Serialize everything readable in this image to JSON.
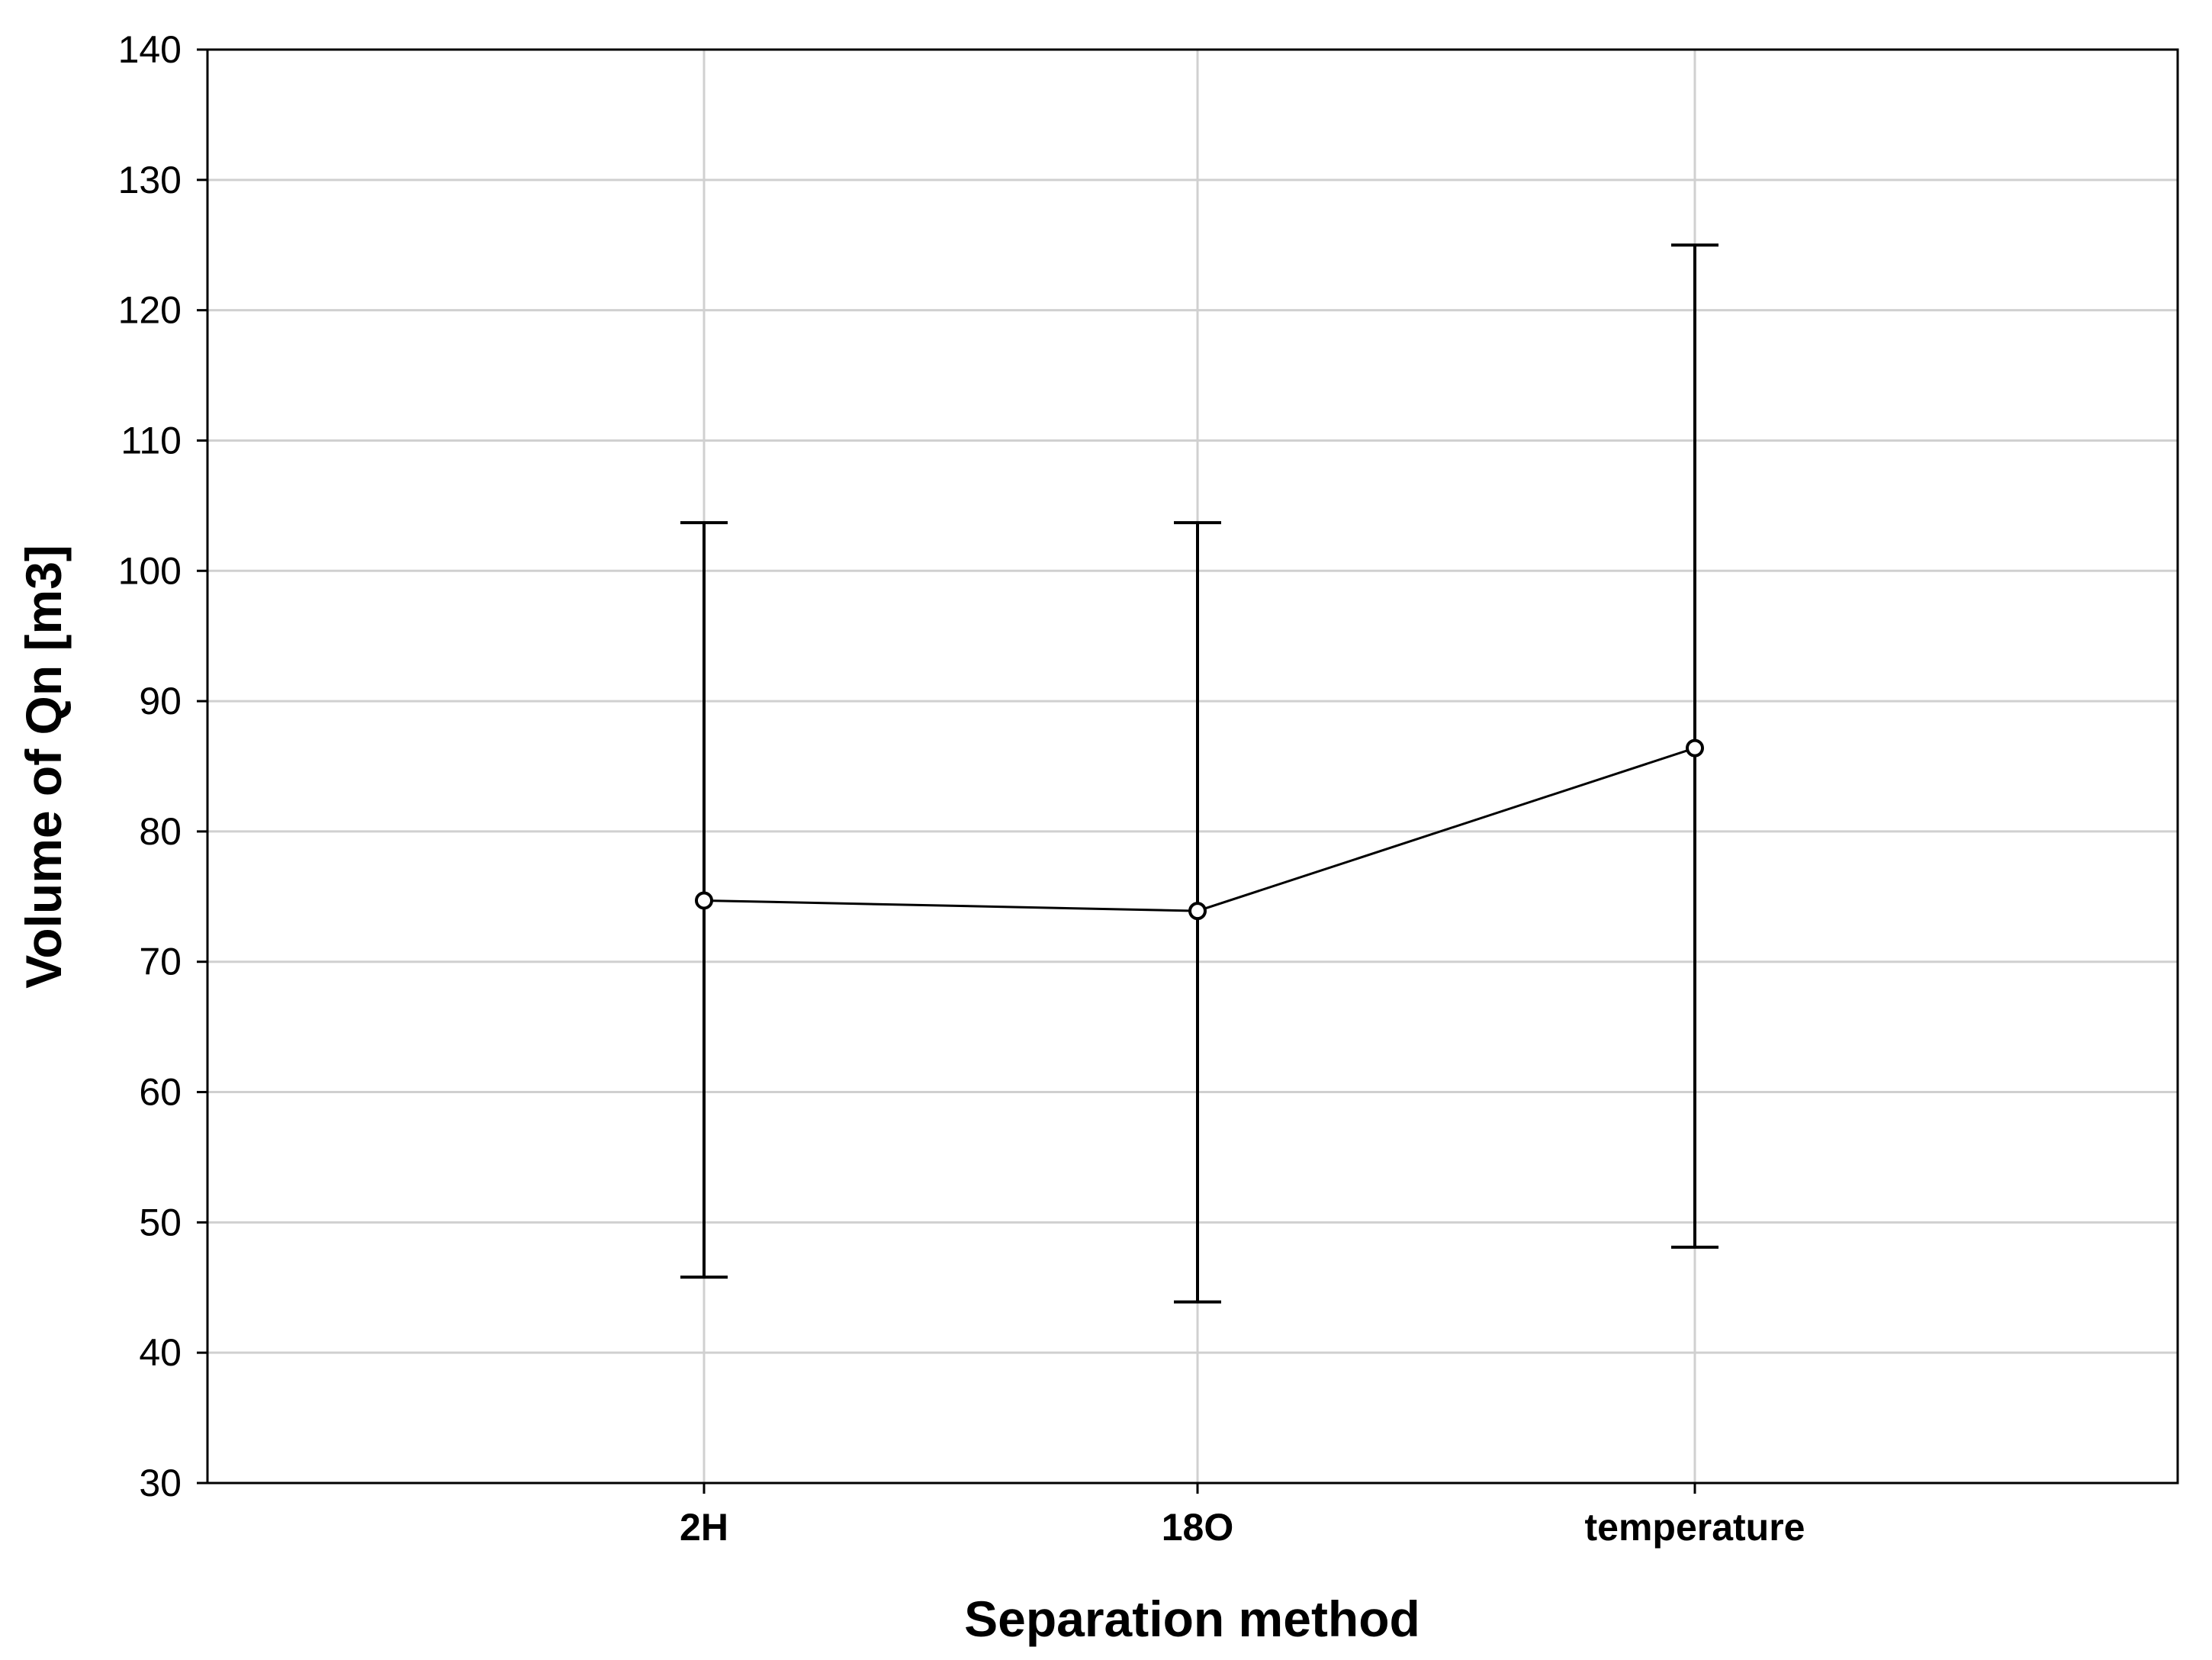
{
  "chart_data": {
    "type": "line",
    "title": "",
    "xlabel": "Separation method",
    "ylabel": "Volume of Qn [m3]",
    "categories": [
      "2H",
      "18O",
      "temperature"
    ],
    "series": [
      {
        "values": [
          74.7,
          73.9,
          86.4
        ],
        "error_low": [
          45.8,
          43.9,
          48.1
        ],
        "error_high": [
          103.7,
          103.7,
          125.0
        ]
      }
    ],
    "ylim": [
      30,
      140
    ],
    "yticks": [
      30,
      40,
      50,
      60,
      70,
      80,
      90,
      100,
      110,
      120,
      130,
      140
    ],
    "grid": true,
    "legend": "none",
    "colors": {
      "line": "#000000",
      "grid": "#d0d0d0",
      "frame": "#000000",
      "marker_fill": "#ffffff"
    }
  }
}
